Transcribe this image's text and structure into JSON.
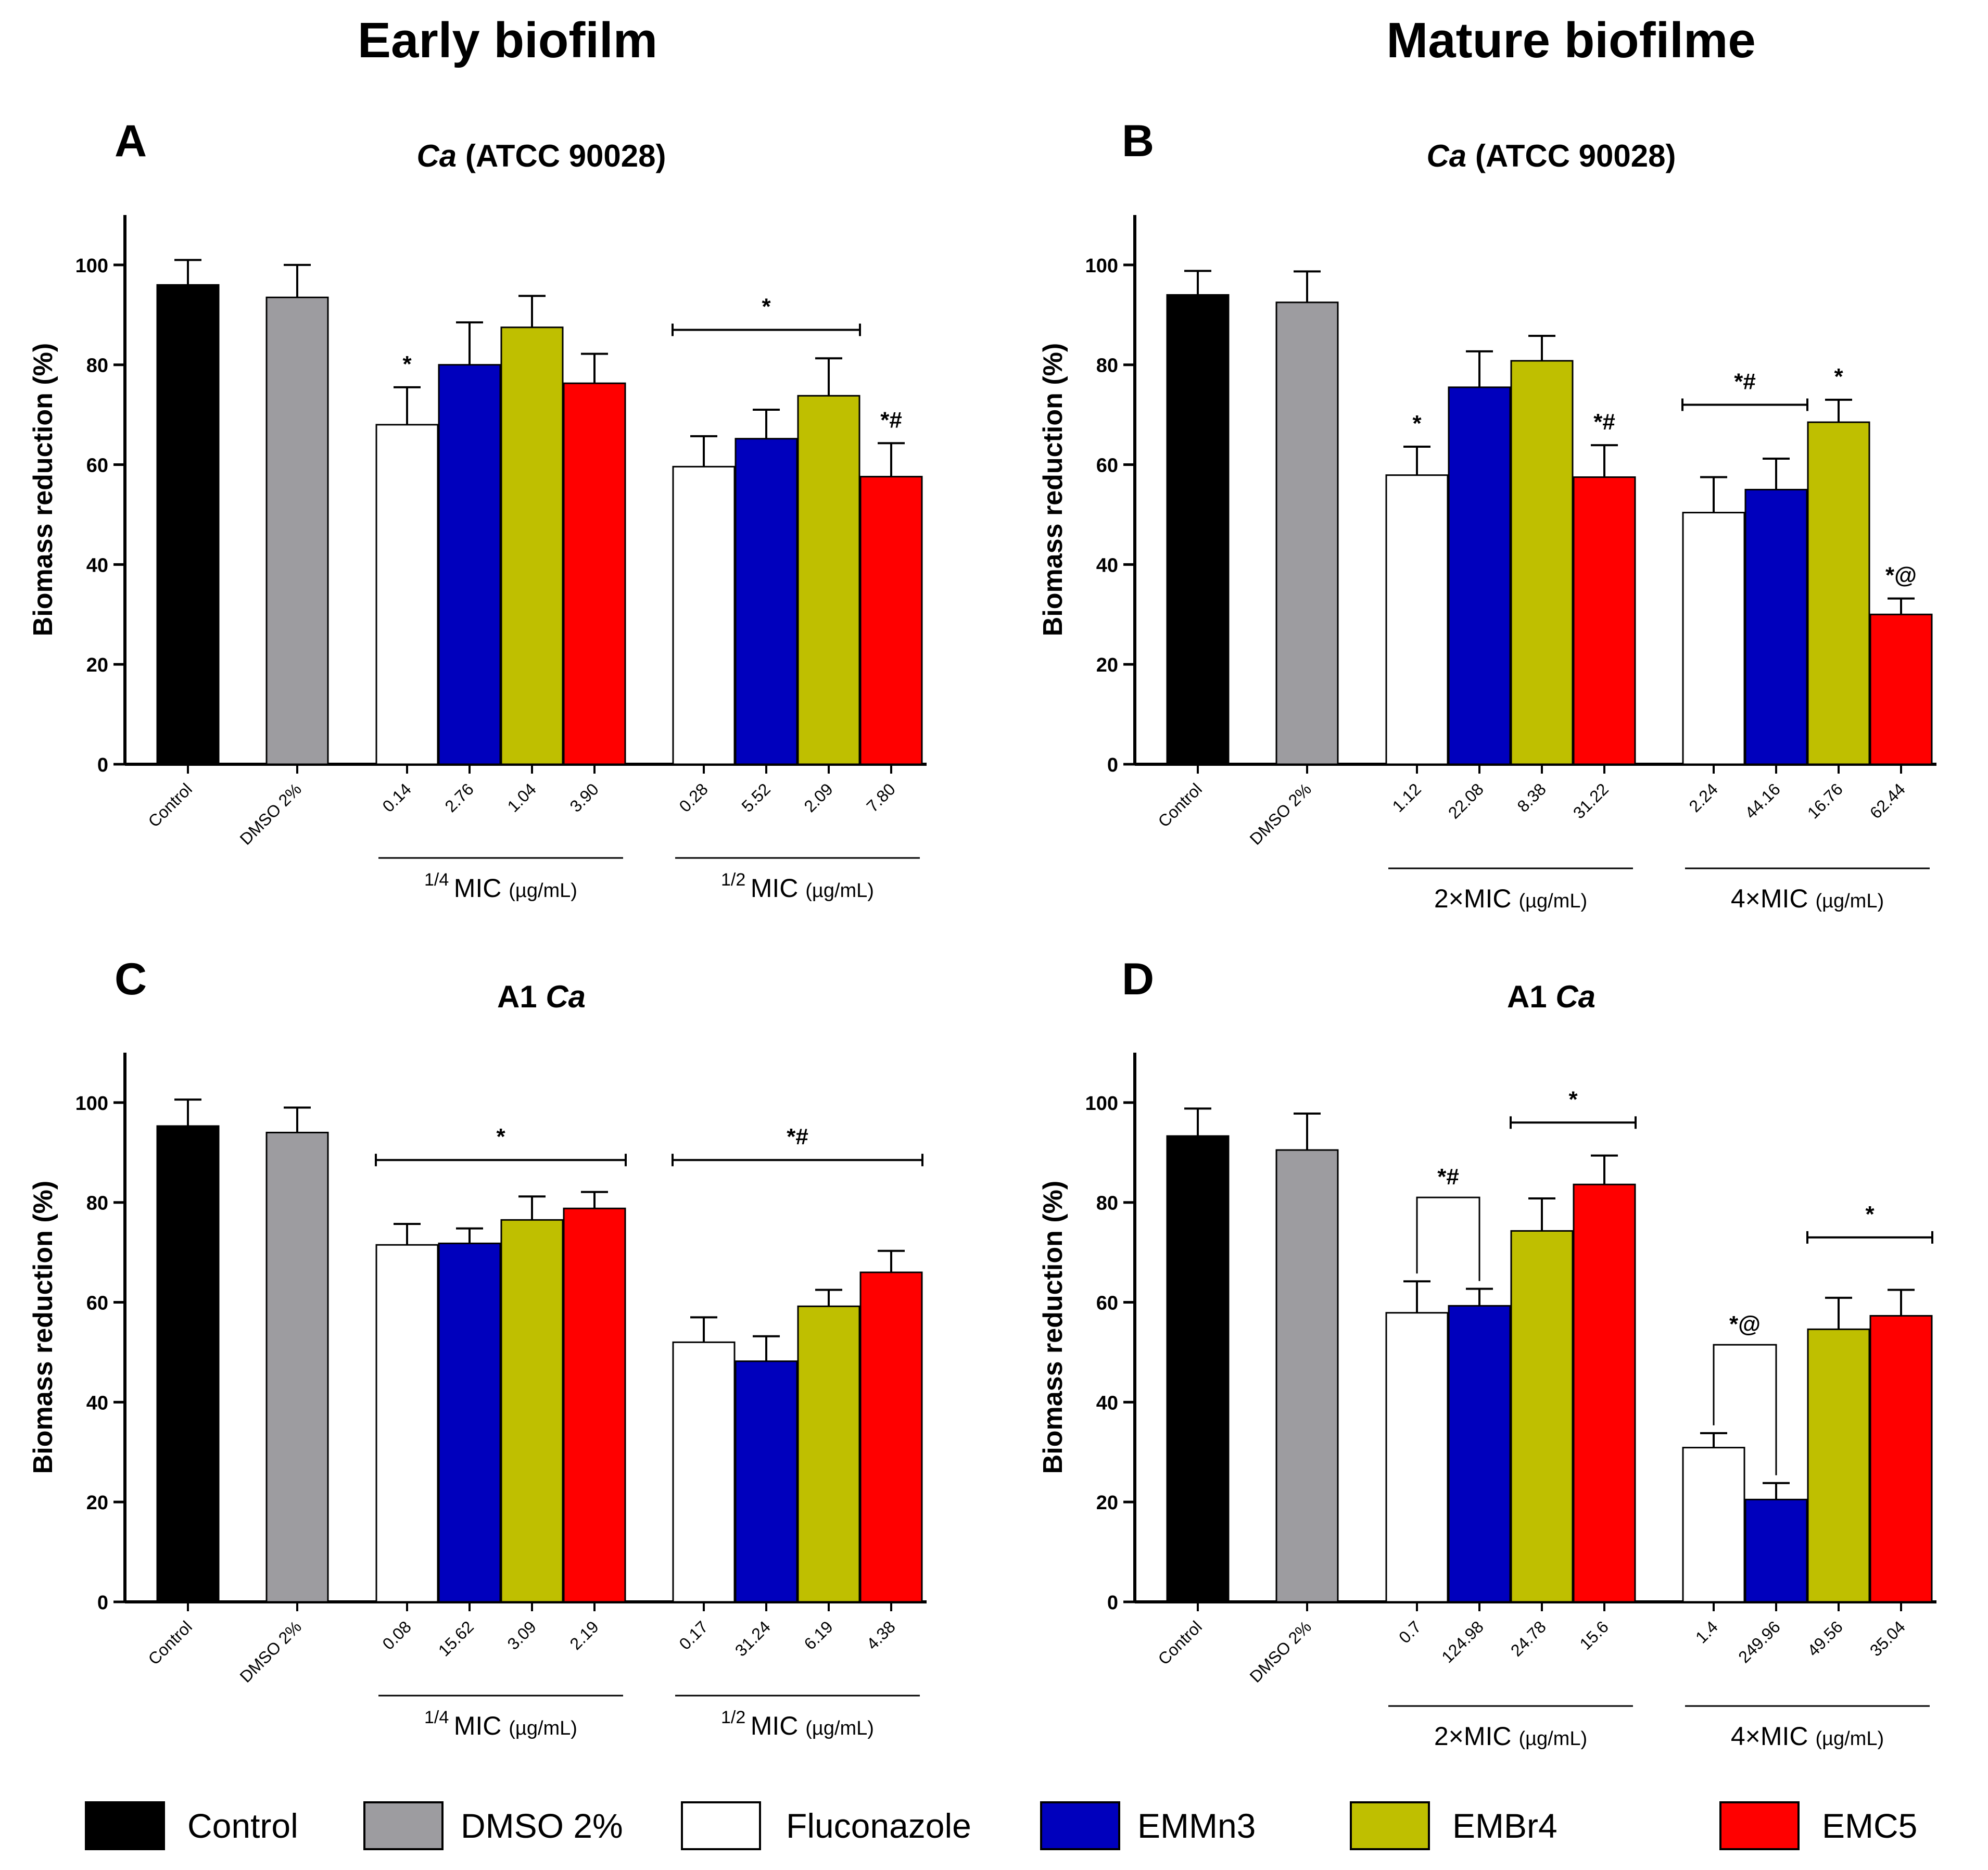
{
  "headers": {
    "early": "Early biofilm",
    "mature": "Mature biofilme"
  },
  "colors": {
    "Control": "#000000",
    "DMSO 2%": "#9d9ca0",
    "Fluconazole": "#ffffff",
    "EMMn3": "#0000bd",
    "EMBr4": "#bfbf00",
    "EMC5": "#ff0000"
  },
  "legend": [
    "Control",
    "DMSO 2%",
    "Fluconazole",
    "EMMn3",
    "EMBr4",
    "EMC5"
  ],
  "chart_data": [
    {
      "panel": "A",
      "type": "bar",
      "title_italic": "Ca",
      "title_rest": " (ATCC 90028)",
      "title_order": "italic-first",
      "ylabel": "Biomass reduction (%)",
      "ylim": [
        0,
        110
      ],
      "yticks": [
        0,
        20,
        40,
        60,
        80,
        100
      ],
      "bars": [
        {
          "label": "Control",
          "series": "Control",
          "value": 96,
          "err": 5,
          "group": 0
        },
        {
          "label": "DMSO 2%",
          "series": "DMSO 2%",
          "value": 93.5,
          "err": 6.5,
          "group": 1
        },
        {
          "label": "0.14",
          "series": "Fluconazole",
          "value": 68,
          "err": 7.5,
          "group": 2
        },
        {
          "label": "2.76",
          "series": "EMMn3",
          "value": 80,
          "err": 8.5,
          "group": 2
        },
        {
          "label": "1.04",
          "series": "EMBr4",
          "value": 87.5,
          "err": 6.3,
          "group": 2
        },
        {
          "label": "3.90",
          "series": "EMC5",
          "value": 76.3,
          "err": 5.9,
          "group": 2
        },
        {
          "label": "0.28",
          "series": "Fluconazole",
          "value": 59.6,
          "err": 6.1,
          "group": 3
        },
        {
          "label": "5.52",
          "series": "EMMn3",
          "value": 65.2,
          "err": 5.8,
          "group": 3
        },
        {
          "label": "2.09",
          "series": "EMBr4",
          "value": 73.8,
          "err": 7.5,
          "group": 3
        },
        {
          "label": "7.80",
          "series": "EMC5",
          "value": 57.6,
          "err": 6.7,
          "group": 3
        }
      ],
      "groups": [
        {
          "first": 2,
          "last": 5,
          "prefix_sup": "1/4",
          "prefix": "MIC",
          "unit": "(µg/mL)"
        },
        {
          "first": 6,
          "last": 9,
          "prefix_sup": "1/2",
          "prefix": "MIC",
          "unit": "(µg/mL)"
        }
      ],
      "annotations": [
        {
          "text": "*",
          "bar": 2
        },
        {
          "text": "*#",
          "bar": 9
        },
        {
          "text": "*",
          "bracket": [
            6,
            8
          ],
          "level": 87
        }
      ]
    },
    {
      "panel": "B",
      "type": "bar",
      "title_italic": "Ca",
      "title_rest": " (ATCC 90028)",
      "title_order": "italic-first",
      "ylabel": "Biomass reduction (%)",
      "ylim": [
        0,
        110
      ],
      "yticks": [
        0,
        20,
        40,
        60,
        80,
        100
      ],
      "bars": [
        {
          "label": "Control",
          "series": "Control",
          "value": 94,
          "err": 4.8,
          "group": 0
        },
        {
          "label": "DMSO 2%",
          "series": "DMSO 2%",
          "value": 92.5,
          "err": 6.2,
          "group": 1
        },
        {
          "label": "1.12",
          "series": "Fluconazole",
          "value": 57.9,
          "err": 5.7,
          "group": 2
        },
        {
          "label": "22.08",
          "series": "EMMn3",
          "value": 75.5,
          "err": 7.2,
          "group": 2
        },
        {
          "label": "8.38",
          "series": "EMBr4",
          "value": 80.8,
          "err": 5,
          "group": 2
        },
        {
          "label": "31.22",
          "series": "EMC5",
          "value": 57.5,
          "err": 6.4,
          "group": 2
        },
        {
          "label": "2.24",
          "series": "Fluconazole",
          "value": 50.4,
          "err": 7.1,
          "group": 3
        },
        {
          "label": "44.16",
          "series": "EMMn3",
          "value": 55,
          "err": 6.2,
          "group": 3
        },
        {
          "label": "16.76",
          "series": "EMBr4",
          "value": 68.5,
          "err": 4.5,
          "group": 3
        },
        {
          "label": "62.44",
          "series": "EMC5",
          "value": 30,
          "err": 3.2,
          "group": 3
        }
      ],
      "groups": [
        {
          "first": 2,
          "last": 5,
          "prefix": "2×MIC",
          "unit": "(µg/mL)"
        },
        {
          "first": 6,
          "last": 9,
          "prefix": "4×MIC",
          "unit": "(µg/mL)"
        }
      ],
      "annotations": [
        {
          "text": "*",
          "bar": 2
        },
        {
          "text": "*#",
          "bar": 5
        },
        {
          "text": "*",
          "bar": 8
        },
        {
          "text": "*@",
          "bar": 9
        },
        {
          "text": "*#",
          "bracket": [
            6,
            7
          ],
          "level": 72
        }
      ]
    },
    {
      "panel": "C",
      "type": "bar",
      "title_italic": "Ca",
      "title_rest": "A1 ",
      "title_order": "rest-first",
      "ylabel": "Biomass reduction (%)",
      "ylim": [
        0,
        110
      ],
      "yticks": [
        0,
        20,
        40,
        60,
        80,
        100
      ],
      "bars": [
        {
          "label": "Control",
          "series": "Control",
          "value": 95.3,
          "err": 5.3,
          "group": 0
        },
        {
          "label": "DMSO 2%",
          "series": "DMSO 2%",
          "value": 94,
          "err": 5,
          "group": 1
        },
        {
          "label": "0.08",
          "series": "Fluconazole",
          "value": 71.5,
          "err": 4.2,
          "group": 2
        },
        {
          "label": "15.62",
          "series": "EMMn3",
          "value": 71.8,
          "err": 3,
          "group": 2
        },
        {
          "label": "3.09",
          "series": "EMBr4",
          "value": 76.5,
          "err": 4.7,
          "group": 2
        },
        {
          "label": "2.19",
          "series": "EMC5",
          "value": 78.8,
          "err": 3.3,
          "group": 2
        },
        {
          "label": "0.17",
          "series": "Fluconazole",
          "value": 52,
          "err": 5,
          "group": 3
        },
        {
          "label": "31.24",
          "series": "EMMn3",
          "value": 48.2,
          "err": 5,
          "group": 3
        },
        {
          "label": "6.19",
          "series": "EMBr4",
          "value": 59.2,
          "err": 3.3,
          "group": 3
        },
        {
          "label": "4.38",
          "series": "EMC5",
          "value": 66,
          "err": 4.3,
          "group": 3
        }
      ],
      "groups": [
        {
          "first": 2,
          "last": 5,
          "prefix_sup": "1/4",
          "prefix": "MIC",
          "unit": "(µg/mL)"
        },
        {
          "first": 6,
          "last": 9,
          "prefix_sup": "1/2",
          "prefix": "MIC",
          "unit": "(µg/mL)"
        }
      ],
      "annotations": [
        {
          "text": "*",
          "bracket": [
            2,
            5
          ],
          "level": 88.5
        },
        {
          "text": "*#",
          "bracket": [
            6,
            9
          ],
          "level": 88.5
        }
      ]
    },
    {
      "panel": "D",
      "type": "bar",
      "title_italic": "Ca",
      "title_rest": "A1 ",
      "title_order": "rest-first",
      "ylabel": "Biomass reduction (%)",
      "ylim": [
        0,
        110
      ],
      "yticks": [
        0,
        20,
        40,
        60,
        80,
        100
      ],
      "bars": [
        {
          "label": "Control",
          "series": "Control",
          "value": 93.3,
          "err": 5.5,
          "group": 0
        },
        {
          "label": "DMSO 2%",
          "series": "DMSO 2%",
          "value": 90.5,
          "err": 7.3,
          "group": 1
        },
        {
          "label": "0.7",
          "series": "Fluconazole",
          "value": 57.9,
          "err": 6.3,
          "group": 2
        },
        {
          "label": "124.98",
          "series": "EMMn3",
          "value": 59.3,
          "err": 3.4,
          "group": 2
        },
        {
          "label": "24.78",
          "series": "EMBr4",
          "value": 74.3,
          "err": 6.5,
          "group": 2
        },
        {
          "label": "15.6",
          "series": "EMC5",
          "value": 83.6,
          "err": 5.8,
          "group": 2
        },
        {
          "label": "1.4",
          "series": "Fluconazole",
          "value": 30.9,
          "err": 2.9,
          "group": 3
        },
        {
          "label": "249.96",
          "series": "EMMn3",
          "value": 20.5,
          "err": 3.3,
          "group": 3
        },
        {
          "label": "49.56",
          "series": "EMBr4",
          "value": 54.6,
          "err": 6.3,
          "group": 3
        },
        {
          "label": "35.04",
          "series": "EMC5",
          "value": 57.3,
          "err": 5.2,
          "group": 3
        }
      ],
      "groups": [
        {
          "first": 2,
          "last": 5,
          "prefix": "2×MIC",
          "unit": "(µg/mL)"
        },
        {
          "first": 6,
          "last": 9,
          "prefix": "4×MIC",
          "unit": "(µg/mL)"
        }
      ],
      "annotations": [
        {
          "text": "*#",
          "pair": [
            2,
            3
          ],
          "level": 81
        },
        {
          "text": "*",
          "bracket": [
            4,
            5
          ],
          "level": 96
        },
        {
          "text": "*@",
          "pair": [
            6,
            7
          ],
          "level": 51.5
        },
        {
          "text": "*",
          "bracket": [
            8,
            9
          ],
          "level": 73
        }
      ]
    }
  ]
}
